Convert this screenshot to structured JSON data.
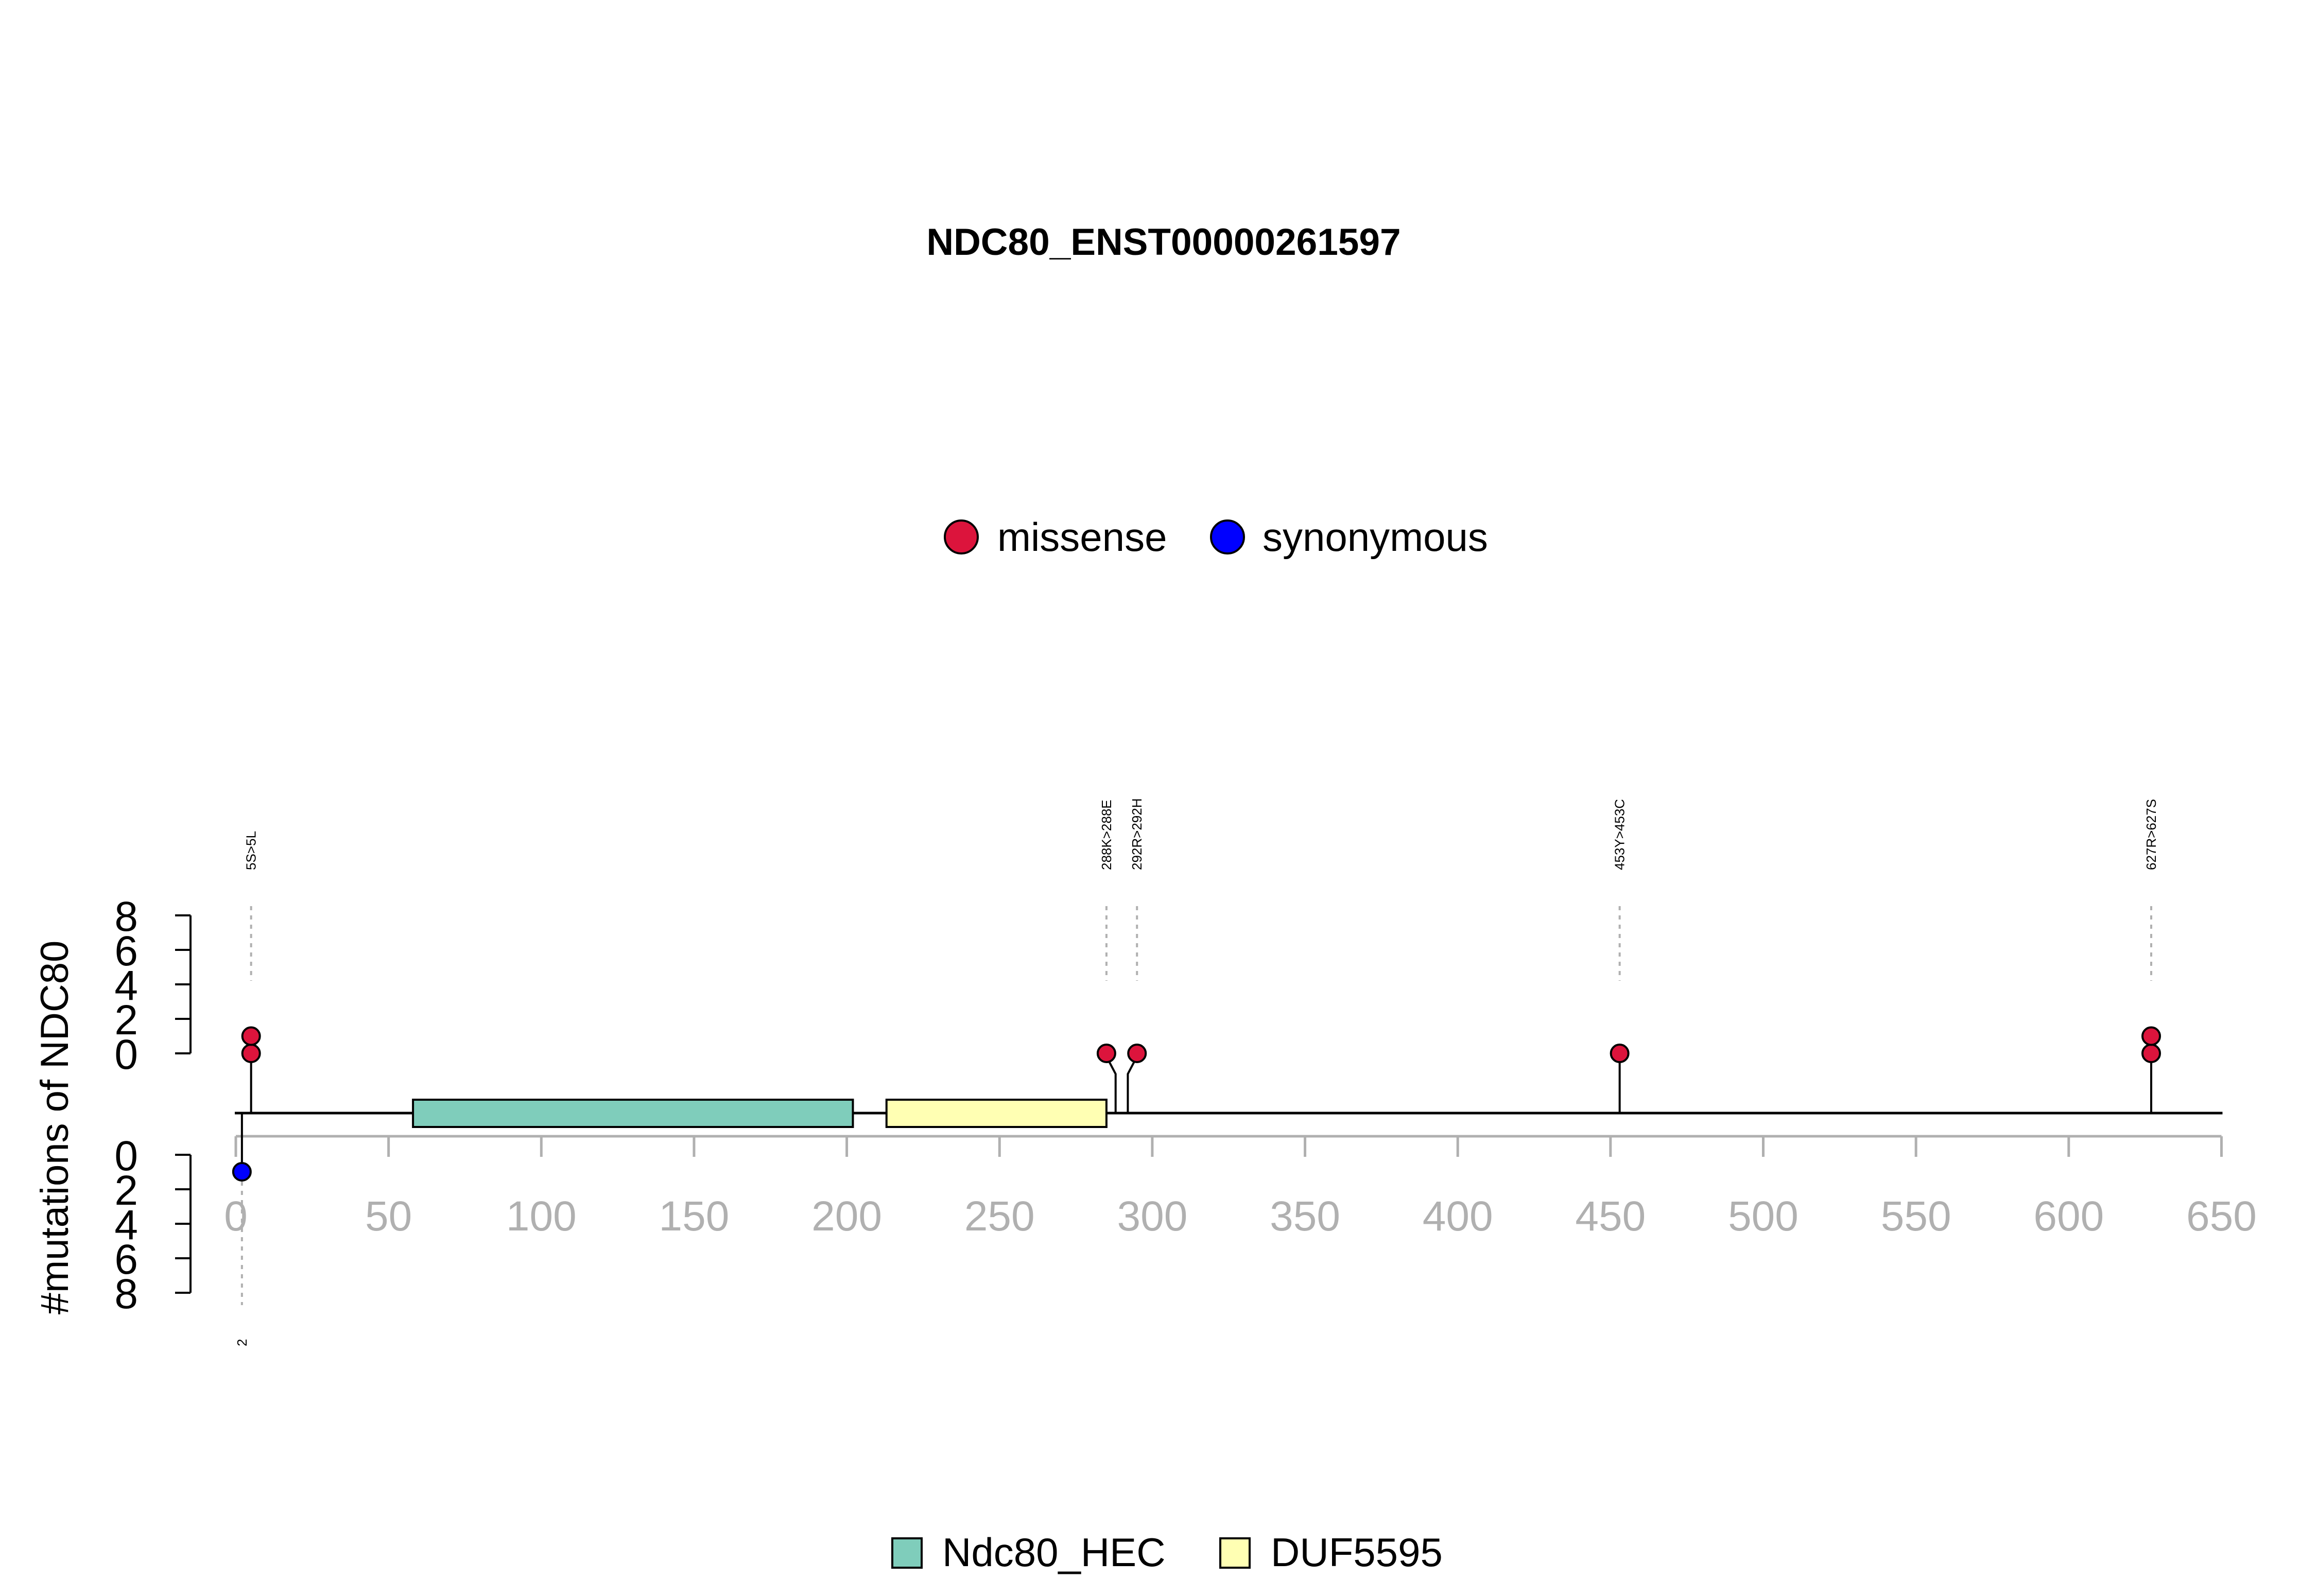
{
  "chart_data": {
    "type": "lollipop",
    "title": "NDC80_ENST00000261597",
    "ylabel": "#mutations of NDC80",
    "xlim": [
      0,
      650
    ],
    "x_ticks": [
      0,
      50,
      100,
      150,
      200,
      250,
      300,
      350,
      400,
      450,
      500,
      550,
      600,
      650
    ],
    "y_ticks": [
      0,
      2,
      4,
      6,
      8
    ],
    "ylim": [
      0,
      8
    ],
    "protein_length": 642,
    "mutation_legend": [
      {
        "name": "missense",
        "color": "#dc143c"
      },
      {
        "name": "synonymous",
        "color": "#0000ff"
      }
    ],
    "domain_legend": [
      {
        "name": "Ndc80_HEC",
        "color": "#7fcdbb"
      },
      {
        "name": "DUF5595",
        "color": "#ffffb3"
      }
    ],
    "domains": [
      {
        "name": "Ndc80_HEC",
        "start": 58,
        "end": 202,
        "color": "#7fcdbb"
      },
      {
        "name": "DUF5595",
        "start": 213,
        "end": 285,
        "color": "#ffffb3"
      }
    ],
    "mutations_top": [
      {
        "position": 5,
        "display_x": 5,
        "count": 2,
        "type": "missense",
        "label": "5S>5L"
      },
      {
        "position": 288,
        "display_x": 285,
        "count": 1,
        "type": "missense",
        "label": "288K>288E"
      },
      {
        "position": 292,
        "display_x": 295,
        "count": 1,
        "type": "missense",
        "label": "292R>292H"
      },
      {
        "position": 453,
        "display_x": 453,
        "count": 1,
        "type": "missense",
        "label": "453Y>453C"
      },
      {
        "position": 627,
        "display_x": 627,
        "count": 2,
        "type": "missense",
        "label": "627R>627S"
      }
    ],
    "mutations_bottom": [
      {
        "position": 2,
        "display_x": 2,
        "count": 1,
        "type": "synonymous",
        "label": "2"
      }
    ]
  }
}
